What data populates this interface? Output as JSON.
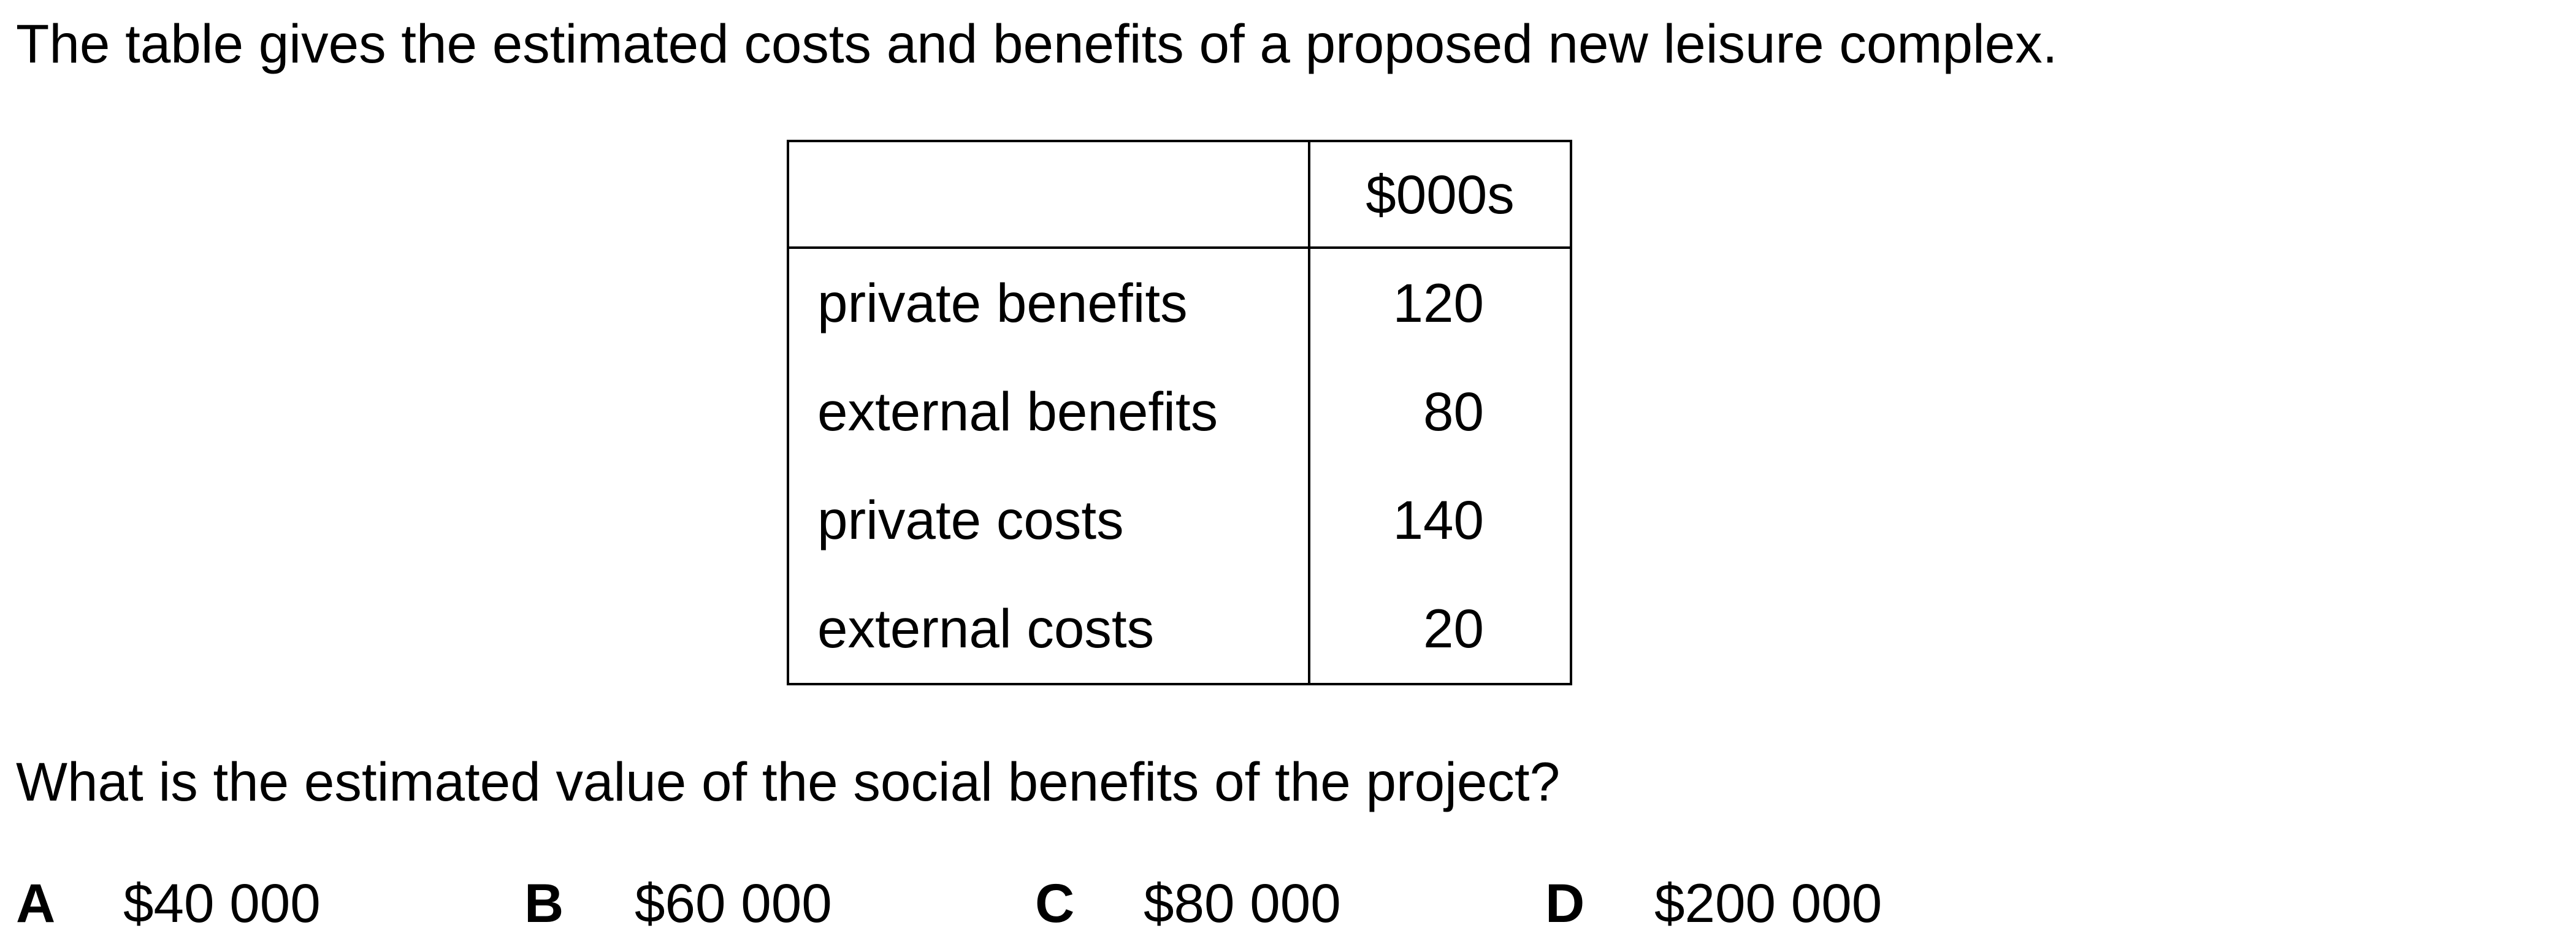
{
  "intro": "The table gives the estimated costs and benefits of a proposed new leisure complex.",
  "table": {
    "header_label": "",
    "header_unit": "$000s",
    "rows": [
      {
        "label": "private benefits",
        "value": "120"
      },
      {
        "label": "external benefits",
        "value": "80"
      },
      {
        "label": "private costs",
        "value": "140"
      },
      {
        "label": "external costs",
        "value": "20"
      }
    ]
  },
  "question": "What is the estimated value of the social benefits of the project?",
  "options": [
    {
      "letter": "A",
      "text": "$40 000"
    },
    {
      "letter": "B",
      "text": "$60 000"
    },
    {
      "letter": "C",
      "text": "$80 000"
    },
    {
      "letter": "D",
      "text": "$200 000"
    }
  ]
}
